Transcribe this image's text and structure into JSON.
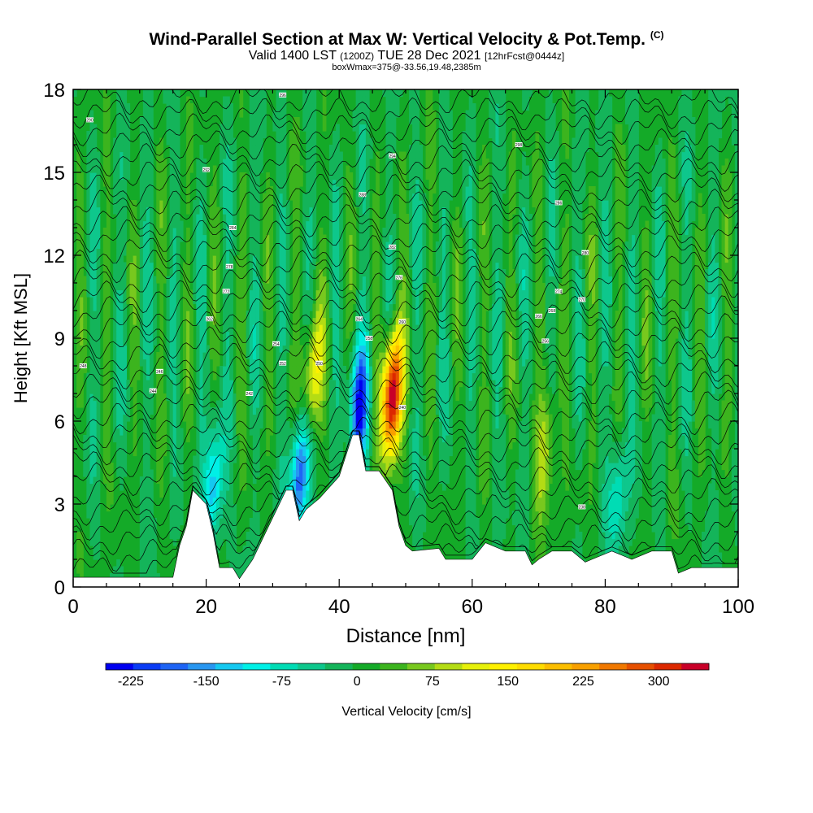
{
  "header": {
    "title": "Wind-Parallel Section at Max W: Vertical Velocity & Pot.Temp.",
    "copyright": "(C)",
    "valid_prefix": "Valid 1400 LST",
    "valid_utc": "(1200Z)",
    "valid_date": "TUE 28 Dec 2021",
    "forecast": "[12hrFcst@0444z]",
    "boxinfo": "boxWmax=375@-33.56,19.48,2385m"
  },
  "chart_data": {
    "type": "heatmap",
    "title": "Wind-Parallel Section at Max W: Vertical Velocity & Pot.Temp.",
    "xlabel": "Distance [nm]",
    "ylabel": "Height [Kft MSL]",
    "xlim": [
      0,
      100
    ],
    "ylim": [
      0,
      18
    ],
    "xticks": [
      0,
      20,
      40,
      60,
      80,
      100
    ],
    "yticks": [
      0,
      3,
      6,
      9,
      12,
      15,
      18
    ],
    "colorbar": {
      "label": "Vertical Velocity [cm/s]",
      "tick_labels": [
        "-225",
        "-150",
        "-75",
        "0",
        "75",
        "150",
        "225",
        "300"
      ],
      "tick_values": [
        -225,
        -150,
        -75,
        0,
        75,
        150,
        225,
        300
      ],
      "range": [
        -250,
        350
      ],
      "colors": [
        "#0000f0",
        "#0a3cf5",
        "#1e64f5",
        "#2896f0",
        "#14c8f0",
        "#00f0e6",
        "#00dcb4",
        "#0ec78c",
        "#14b45a",
        "#14aa28",
        "#3cb41e",
        "#78c81e",
        "#b4dc14",
        "#e6f00a",
        "#fff000",
        "#ffdc00",
        "#fcbe00",
        "#f8a000",
        "#f07800",
        "#e65000",
        "#dc2800",
        "#c80028"
      ]
    },
    "velocity_features": [
      {
        "type": "updraft",
        "distance_nm": 48,
        "height_kft": 7.0,
        "max_cm_s": 375
      },
      {
        "type": "downdraft",
        "distance_nm": 43,
        "height_kft": 6.5,
        "min_cm_s": -225
      },
      {
        "type": "downdraft",
        "distance_nm": 34,
        "height_kft": 4.0,
        "min_cm_s": -200
      },
      {
        "type": "downdraft",
        "distance_nm": 21,
        "height_kft": 3.5,
        "min_cm_s": -150
      },
      {
        "type": "updraft",
        "distance_nm": 36,
        "height_kft": 7.5,
        "max_cm_s": 150
      },
      {
        "type": "updraft",
        "distance_nm": 71,
        "height_kft": 5.0,
        "max_cm_s": 110
      },
      {
        "type": "downdraft",
        "distance_nm": 82,
        "height_kft": 3.5,
        "min_cm_s": -90
      }
    ],
    "terrain": [
      {
        "distance_nm": 0,
        "height_kft": 0.35
      },
      {
        "distance_nm": 15,
        "height_kft": 0.35
      },
      {
        "distance_nm": 16,
        "height_kft": 1.5
      },
      {
        "distance_nm": 17,
        "height_kft": 2.2
      },
      {
        "distance_nm": 18,
        "height_kft": 3.5
      },
      {
        "distance_nm": 20,
        "height_kft": 3.0
      },
      {
        "distance_nm": 21,
        "height_kft": 2.0
      },
      {
        "distance_nm": 22,
        "height_kft": 0.7
      },
      {
        "distance_nm": 24,
        "height_kft": 0.7
      },
      {
        "distance_nm": 25,
        "height_kft": 0.3
      },
      {
        "distance_nm": 27,
        "height_kft": 1.0
      },
      {
        "distance_nm": 29,
        "height_kft": 2.0
      },
      {
        "distance_nm": 31,
        "height_kft": 3.0
      },
      {
        "distance_nm": 32,
        "height_kft": 3.5
      },
      {
        "distance_nm": 33,
        "height_kft": 3.5
      },
      {
        "distance_nm": 34,
        "height_kft": 2.4
      },
      {
        "distance_nm": 35,
        "height_kft": 2.8
      },
      {
        "distance_nm": 37,
        "height_kft": 3.2
      },
      {
        "distance_nm": 40,
        "height_kft": 4.0
      },
      {
        "distance_nm": 42,
        "height_kft": 5.5
      },
      {
        "distance_nm": 43,
        "height_kft": 5.5
      },
      {
        "distance_nm": 44,
        "height_kft": 4.2
      },
      {
        "distance_nm": 46,
        "height_kft": 4.2
      },
      {
        "distance_nm": 48,
        "height_kft": 3.5
      },
      {
        "distance_nm": 49,
        "height_kft": 2.2
      },
      {
        "distance_nm": 50,
        "height_kft": 1.5
      },
      {
        "distance_nm": 51,
        "height_kft": 1.3
      },
      {
        "distance_nm": 55,
        "height_kft": 1.4
      },
      {
        "distance_nm": 56,
        "height_kft": 1.0
      },
      {
        "distance_nm": 60,
        "height_kft": 1.0
      },
      {
        "distance_nm": 62,
        "height_kft": 1.6
      },
      {
        "distance_nm": 65,
        "height_kft": 1.3
      },
      {
        "distance_nm": 68,
        "height_kft": 1.3
      },
      {
        "distance_nm": 69,
        "height_kft": 0.8
      },
      {
        "distance_nm": 70,
        "height_kft": 1.0
      },
      {
        "distance_nm": 72,
        "height_kft": 1.3
      },
      {
        "distance_nm": 75,
        "height_kft": 1.3
      },
      {
        "distance_nm": 77,
        "height_kft": 0.9
      },
      {
        "distance_nm": 78,
        "height_kft": 1.0
      },
      {
        "distance_nm": 81,
        "height_kft": 1.3
      },
      {
        "distance_nm": 84,
        "height_kft": 1.0
      },
      {
        "distance_nm": 87,
        "height_kft": 1.3
      },
      {
        "distance_nm": 90,
        "height_kft": 1.3
      },
      {
        "distance_nm": 91,
        "height_kft": 0.5
      },
      {
        "distance_nm": 93,
        "height_kft": 0.7
      },
      {
        "distance_nm": 100,
        "height_kft": 0.7
      }
    ],
    "theta_contours": {
      "count": 32,
      "base_height_kft": 0.6,
      "spacing_kft": 0.55,
      "sample_labels": [
        {
          "label": "290",
          "distance_nm": 2.5,
          "height_kft": 16.9
        },
        {
          "label": "296",
          "distance_nm": 31.5,
          "height_kft": 17.8
        },
        {
          "label": "292",
          "distance_nm": 20,
          "height_kft": 15.1
        },
        {
          "label": "294",
          "distance_nm": 48,
          "height_kft": 15.6
        },
        {
          "label": "298",
          "distance_nm": 67,
          "height_kft": 16.0
        },
        {
          "label": "288",
          "distance_nm": 43.5,
          "height_kft": 14.2
        },
        {
          "label": "286",
          "distance_nm": 73,
          "height_kft": 13.9
        },
        {
          "label": "284",
          "distance_nm": 24,
          "height_kft": 13.0
        },
        {
          "label": "282",
          "distance_nm": 48,
          "height_kft": 12.3
        },
        {
          "label": "280",
          "distance_nm": 77,
          "height_kft": 12.1
        },
        {
          "label": "278",
          "distance_nm": 23.5,
          "height_kft": 11.6
        },
        {
          "label": "276",
          "distance_nm": 49,
          "height_kft": 11.2
        },
        {
          "label": "274",
          "distance_nm": 73,
          "height_kft": 10.7
        },
        {
          "label": "272",
          "distance_nm": 23,
          "height_kft": 10.7
        },
        {
          "label": "270",
          "distance_nm": 76.5,
          "height_kft": 10.4
        },
        {
          "label": "268",
          "distance_nm": 72,
          "height_kft": 10.0
        },
        {
          "label": "266",
          "distance_nm": 70,
          "height_kft": 9.8
        },
        {
          "label": "264",
          "distance_nm": 43,
          "height_kft": 9.7
        },
        {
          "label": "262",
          "distance_nm": 20.5,
          "height_kft": 9.7
        },
        {
          "label": "260",
          "distance_nm": 49.5,
          "height_kft": 9.6
        },
        {
          "label": "258",
          "distance_nm": 44.5,
          "height_kft": 9.0
        },
        {
          "label": "256",
          "distance_nm": 71,
          "height_kft": 8.9
        },
        {
          "label": "254",
          "distance_nm": 30.5,
          "height_kft": 8.8
        },
        {
          "label": "252",
          "distance_nm": 31.5,
          "height_kft": 8.1
        },
        {
          "label": "250",
          "distance_nm": 37,
          "height_kft": 8.1
        },
        {
          "label": "248",
          "distance_nm": 1.5,
          "height_kft": 8.0
        },
        {
          "label": "246",
          "distance_nm": 13,
          "height_kft": 7.8
        },
        {
          "label": "244",
          "distance_nm": 12,
          "height_kft": 7.1
        },
        {
          "label": "242",
          "distance_nm": 26.5,
          "height_kft": 7.0
        },
        {
          "label": "240",
          "distance_nm": 49.5,
          "height_kft": 6.5
        },
        {
          "label": "238",
          "distance_nm": 76.5,
          "height_kft": 2.9
        }
      ]
    }
  }
}
